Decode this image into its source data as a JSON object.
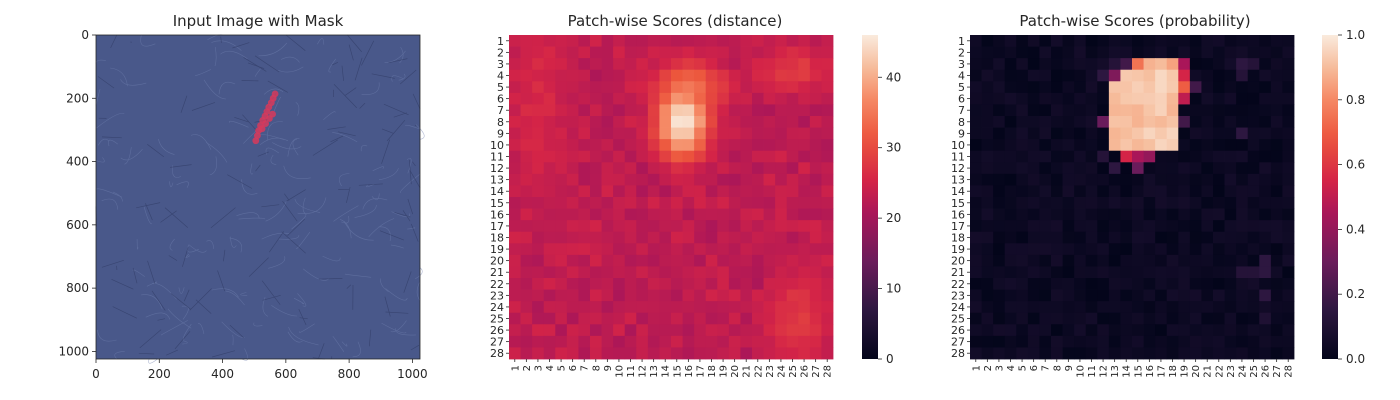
{
  "chart_data": [
    {
      "type": "image",
      "title": "Input Image with Mask",
      "xlim": [
        0,
        1024
      ],
      "ylim": [
        1024,
        0
      ],
      "x_ticks": [
        0,
        200,
        400,
        600,
        800,
        1000
      ],
      "y_ticks": [
        0,
        200,
        400,
        600,
        800,
        1000
      ],
      "background_color": "#49588a",
      "mask_color": "#d63a5c",
      "mask_points": [
        [
          566,
          186
        ],
        [
          560,
          200
        ],
        [
          554,
          214
        ],
        [
          546,
          228
        ],
        [
          540,
          242
        ],
        [
          534,
          256
        ],
        [
          527,
          270
        ],
        [
          520,
          286
        ],
        [
          514,
          302
        ],
        [
          510,
          318
        ],
        [
          505,
          334
        ],
        [
          558,
          250
        ],
        [
          548,
          264
        ],
        [
          536,
          280
        ],
        [
          525,
          296
        ]
      ]
    },
    {
      "type": "heatmap",
      "title": "Patch-wise Scores (distance)",
      "x_labels": [
        "1",
        "2",
        "3",
        "4",
        "5",
        "6",
        "7",
        "8",
        "9",
        "10",
        "11",
        "12",
        "13",
        "14",
        "15",
        "16",
        "17",
        "18",
        "19",
        "20",
        "21",
        "22",
        "23",
        "24",
        "25",
        "26",
        "27",
        "28"
      ],
      "y_labels": [
        "1",
        "2",
        "3",
        "4",
        "5",
        "6",
        "7",
        "8",
        "9",
        "10",
        "11",
        "12",
        "13",
        "14",
        "15",
        "16",
        "17",
        "18",
        "19",
        "20",
        "21",
        "22",
        "23",
        "24",
        "25",
        "26",
        "27",
        "28"
      ],
      "colormap": "rocket",
      "colorbar": {
        "min": 0,
        "max": 46,
        "ticks": [
          0,
          10,
          20,
          30,
          40
        ]
      },
      "base_value": 22,
      "hotspots": [
        {
          "row": 8,
          "col": 15.5,
          "peak": 46,
          "sigma_row": 2.2,
          "sigma_col": 1.6
        },
        {
          "row": 5,
          "col": 16,
          "peak": 35,
          "sigma_row": 1.6,
          "sigma_col": 2.2
        },
        {
          "row": 3.5,
          "col": 25,
          "peak": 28,
          "sigma_row": 1.5,
          "sigma_col": 2.5
        },
        {
          "row": 25,
          "col": 25.5,
          "peak": 28,
          "sigma_row": 3,
          "sigma_col": 2
        },
        {
          "row": 6,
          "col": 3,
          "peak": 26,
          "sigma_row": 6,
          "sigma_col": 2
        }
      ]
    },
    {
      "type": "heatmap",
      "title": "Patch-wise Scores (probability)",
      "x_labels": [
        "1",
        "2",
        "3",
        "4",
        "5",
        "6",
        "7",
        "8",
        "9",
        "10",
        "11",
        "12",
        "13",
        "14",
        "15",
        "16",
        "17",
        "18",
        "19",
        "20",
        "21",
        "22",
        "23",
        "24",
        "25",
        "26",
        "27",
        "28"
      ],
      "y_labels": [
        "1",
        "2",
        "3",
        "4",
        "5",
        "6",
        "7",
        "8",
        "9",
        "10",
        "11",
        "12",
        "13",
        "14",
        "15",
        "16",
        "17",
        "18",
        "19",
        "20",
        "21",
        "22",
        "23",
        "24",
        "25",
        "26",
        "27",
        "28"
      ],
      "colormap": "rocket",
      "colorbar": {
        "min": 0.0,
        "max": 1.0,
        "ticks": [
          "0.0",
          "0.2",
          "0.4",
          "0.6",
          "0.8",
          "1.0"
        ]
      },
      "high_region": {
        "rows": [
          4,
          10
        ],
        "cols": [
          13,
          18
        ],
        "value": 0.92
      },
      "cells": [
        {
          "row": 3,
          "col": 15,
          "value": 0.75
        },
        {
          "row": 3,
          "col": 16,
          "value": 0.88
        },
        {
          "row": 3,
          "col": 17,
          "value": 0.9
        },
        {
          "row": 3,
          "col": 18,
          "value": 0.85
        },
        {
          "row": 3,
          "col": 19,
          "value": 0.45
        },
        {
          "row": 4,
          "col": 19,
          "value": 0.55
        },
        {
          "row": 5,
          "col": 19,
          "value": 0.7
        },
        {
          "row": 6,
          "col": 19,
          "value": 0.5
        },
        {
          "row": 4,
          "col": 13,
          "value": 0.35
        },
        {
          "row": 11,
          "col": 14,
          "value": 0.55
        },
        {
          "row": 11,
          "col": 15,
          "value": 0.45
        },
        {
          "row": 11,
          "col": 16,
          "value": 0.4
        },
        {
          "row": 12,
          "col": 15,
          "value": 0.3
        },
        {
          "row": 8,
          "col": 12,
          "value": 0.3
        },
        {
          "row": 8,
          "col": 19,
          "value": 0.2
        },
        {
          "row": 5,
          "col": 20,
          "value": 0.2
        },
        {
          "row": 4,
          "col": 12,
          "value": 0.15
        },
        {
          "row": 3,
          "col": 13,
          "value": 0.12
        },
        {
          "row": 3,
          "col": 14,
          "value": 0.2
        },
        {
          "row": 3,
          "col": 24,
          "value": 0.15
        },
        {
          "row": 3,
          "col": 25,
          "value": 0.12
        },
        {
          "row": 4,
          "col": 24,
          "value": 0.12
        },
        {
          "row": 9,
          "col": 24,
          "value": 0.15
        },
        {
          "row": 21,
          "col": 24,
          "value": 0.12
        },
        {
          "row": 21,
          "col": 25,
          "value": 0.12
        },
        {
          "row": 20,
          "col": 26,
          "value": 0.15
        },
        {
          "row": 21,
          "col": 26,
          "value": 0.15
        },
        {
          "row": 23,
          "col": 26,
          "value": 0.15
        },
        {
          "row": 25,
          "col": 26,
          "value": 0.1
        },
        {
          "row": 11,
          "col": 12,
          "value": 0.12
        },
        {
          "row": 12,
          "col": 13,
          "value": 0.15
        }
      ]
    }
  ]
}
